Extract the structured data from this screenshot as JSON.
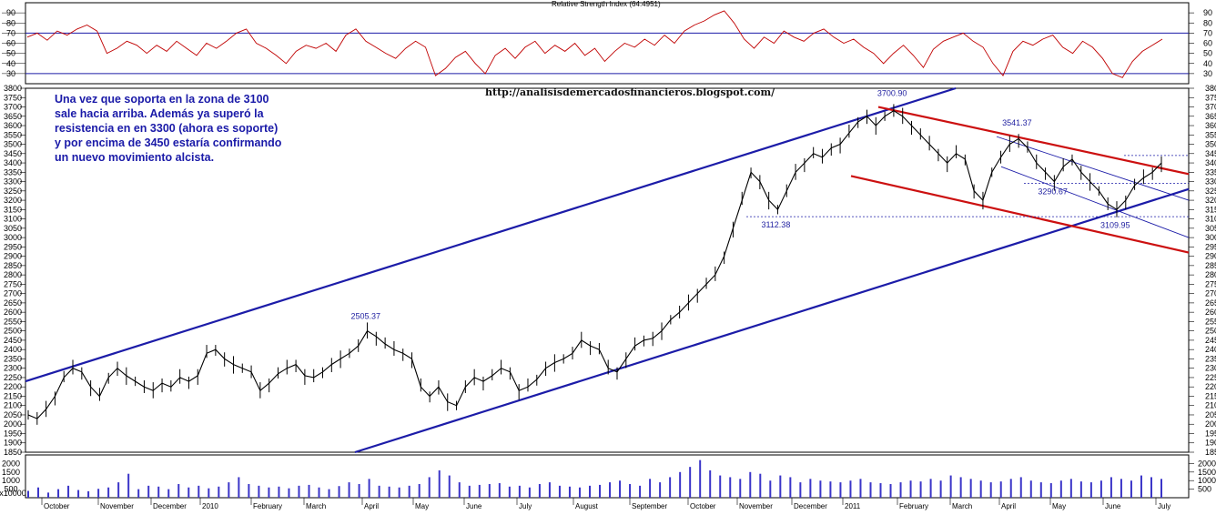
{
  "chart_data": [
    {
      "panel": "rsi",
      "type": "line",
      "title": "Relative Strength Index (64.4951)",
      "ylim": [
        20,
        100
      ],
      "yticks": [
        30,
        40,
        50,
        60,
        70,
        80,
        90
      ],
      "reference_lines": [
        70,
        30
      ],
      "series": [
        {
          "values": [
            66,
            70,
            63,
            72,
            68,
            74,
            78,
            72,
            50,
            55,
            62,
            58,
            50,
            58,
            52,
            62,
            55,
            48,
            60,
            55,
            62,
            70,
            74,
            60,
            55,
            48,
            40,
            52,
            58,
            55,
            60,
            52,
            68,
            74,
            62,
            56,
            50,
            45,
            55,
            62,
            56,
            28,
            35,
            46,
            52,
            40,
            30,
            48,
            55,
            45,
            56,
            62,
            50,
            58,
            52,
            60,
            48,
            55,
            42,
            52,
            60,
            56,
            64,
            58,
            68,
            60,
            72,
            78,
            82,
            88,
            92,
            80,
            64,
            55,
            66,
            60,
            72,
            66,
            62,
            70,
            74,
            66,
            60,
            64,
            56,
            50,
            40,
            50,
            58,
            48,
            36,
            54,
            62,
            66,
            70,
            62,
            56,
            40,
            28,
            52,
            62,
            58,
            64,
            68,
            56,
            50,
            62,
            56,
            45,
            30,
            26,
            42,
            52,
            58,
            64
          ]
        }
      ],
      "color": "#c00000"
    },
    {
      "panel": "price",
      "type": "line",
      "ylim": [
        1850,
        3800
      ],
      "yticks": [
        1850,
        1900,
        1950,
        2000,
        2050,
        2100,
        2150,
        2200,
        2250,
        2300,
        2350,
        2400,
        2450,
        2500,
        2550,
        2600,
        2650,
        2700,
        2750,
        2800,
        2850,
        2900,
        2950,
        3000,
        3050,
        3100,
        3150,
        3200,
        3250,
        3300,
        3350,
        3400,
        3450,
        3500,
        3550,
        3600,
        3650,
        3700,
        3750,
        3800
      ],
      "x_labels": [
        "October",
        "November",
        "December",
        "2010",
        "February",
        "March",
        "April",
        "May",
        "June",
        "July",
        "August",
        "September",
        "October",
        "November",
        "December",
        "2011",
        "February",
        "March",
        "April",
        "May",
        "June",
        "July"
      ],
      "series": [
        {
          "values": [
            2050,
            2030,
            2080,
            2150,
            2250,
            2300,
            2280,
            2200,
            2150,
            2250,
            2300,
            2260,
            2230,
            2200,
            2180,
            2220,
            2200,
            2250,
            2230,
            2260,
            2380,
            2400,
            2350,
            2320,
            2300,
            2280,
            2180,
            2220,
            2270,
            2300,
            2320,
            2260,
            2250,
            2280,
            2320,
            2350,
            2380,
            2420,
            2500,
            2470,
            2430,
            2400,
            2380,
            2350,
            2200,
            2150,
            2200,
            2120,
            2100,
            2200,
            2250,
            2230,
            2260,
            2300,
            2280,
            2180,
            2200,
            2240,
            2300,
            2330,
            2350,
            2380,
            2450,
            2420,
            2400,
            2300,
            2280,
            2350,
            2420,
            2450,
            2460,
            2500,
            2560,
            2600,
            2650,
            2700,
            2750,
            2800,
            2900,
            3050,
            3200,
            3350,
            3300,
            3200,
            3150,
            3250,
            3350,
            3400,
            3450,
            3430,
            3480,
            3500,
            3560,
            3620,
            3650,
            3600,
            3650,
            3680,
            3650,
            3600,
            3550,
            3500,
            3450,
            3400,
            3450,
            3420,
            3250,
            3200,
            3350,
            3430,
            3500,
            3530,
            3480,
            3400,
            3350,
            3300,
            3380,
            3420,
            3350,
            3300,
            3250,
            3180,
            3150,
            3200,
            3280,
            3320,
            3350,
            3400
          ]
        }
      ],
      "annotations": [
        {
          "label": "2505.37",
          "value": 2505.37
        },
        {
          "label": "3700.90",
          "value": 3700.9
        },
        {
          "label": "3541.37",
          "value": 3541.37
        },
        {
          "label": "3290.67",
          "value": 3290.67
        },
        {
          "label": "3112.38",
          "value": 3112.38
        },
        {
          "label": "3109.95",
          "value": 3109.95
        }
      ],
      "channel_colors": {
        "blue": "#1c1ca8",
        "red": "#cc1010"
      }
    },
    {
      "panel": "volume",
      "type": "bar",
      "ylim": [
        0,
        2500
      ],
      "yticks": [
        500,
        1000,
        1500,
        2000
      ],
      "y_axis_label": "x10000",
      "series": [
        {
          "values": [
            400,
            600,
            300,
            500,
            700,
            450,
            380,
            520,
            600,
            900,
            1400,
            500,
            700,
            650,
            500,
            800,
            600,
            700,
            550,
            650,
            900,
            1200,
            800,
            700,
            600,
            650,
            550,
            700,
            750,
            600,
            500,
            680,
            900,
            800,
            1100,
            700,
            650,
            600,
            700,
            800,
            1200,
            1600,
            1300,
            900,
            700,
            750,
            800,
            850,
            650,
            700,
            600,
            800,
            900,
            700,
            650,
            600,
            700,
            750,
            900,
            1000,
            800,
            700,
            1100,
            900,
            1200,
            1500,
            1800,
            2200,
            1600,
            1300,
            1200,
            1100,
            1500,
            1400,
            1000,
            1300,
            1200,
            900,
            1100,
            1000,
            950,
            900,
            1000,
            1100,
            900,
            850,
            800,
            900,
            1000,
            950,
            1100,
            1000,
            1300,
            1200,
            1100,
            1000,
            900,
            950,
            1100,
            1200,
            1000,
            900,
            850,
            1000,
            1100,
            950,
            900,
            1000,
            1200,
            1100,
            1000,
            1300,
            1200,
            1100
          ]
        }
      ],
      "color": "#3a34c8"
    }
  ],
  "texts": {
    "rsi_title": "Relative Strength Index (64.4951)",
    "url": "http://analisisdemercadosfinancieros.blogspot.com/",
    "note_lines": [
      "Una vez que soporta en la zona de 3100",
      "sale hacia arriba. Además ya superó la",
      "resistencia en en 3300 (ahora es soporte)",
      "y por encima de 3450 estaría confirmando",
      "un  nuevo movimiento alcista."
    ]
  }
}
